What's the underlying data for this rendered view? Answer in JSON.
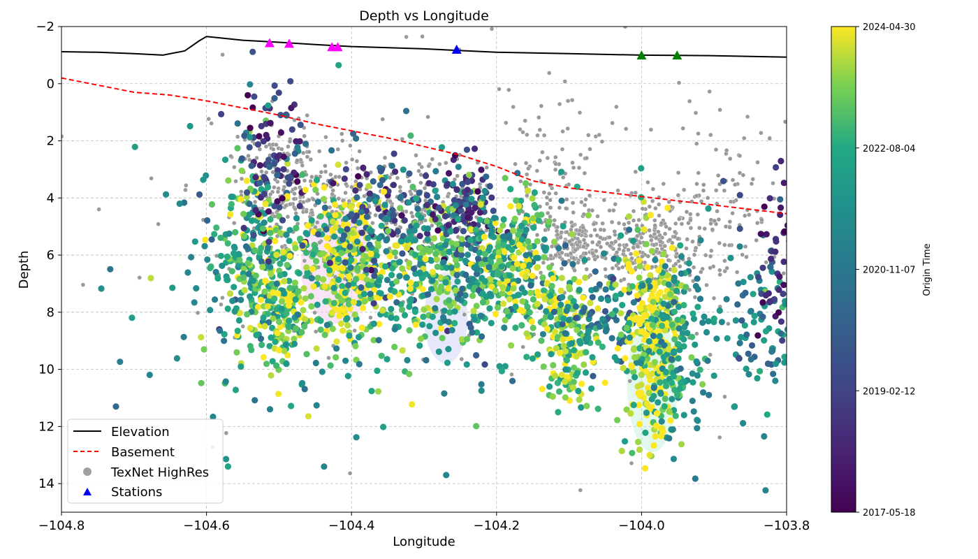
{
  "chart_data": {
    "type": "scatter",
    "title": "Depth vs Longitude",
    "xlabel": "Longitude",
    "ylabel": "Depth",
    "xlim": [
      -104.8,
      -103.8
    ],
    "ylim": [
      15,
      -2
    ],
    "y_inverted": true,
    "xticks": [
      "−104.8",
      "−104.6",
      "−104.4",
      "−104.2",
      "−104.0",
      "−103.8"
    ],
    "xtick_values": [
      -104.8,
      -104.6,
      -104.4,
      -104.2,
      -104.0,
      -103.8
    ],
    "yticks": [
      "−2",
      "0",
      "2",
      "4",
      "6",
      "8",
      "10",
      "12",
      "14"
    ],
    "ytick_values": [
      -2,
      0,
      2,
      4,
      6,
      8,
      10,
      12,
      14
    ],
    "grid": true,
    "legend_position": "lower-left",
    "legend": [
      "Elevation",
      "Basement",
      "TexNet HighRes",
      "Stations"
    ],
    "colorbar": {
      "label": "Origin Time",
      "colormap": "viridis",
      "ticks": [
        "2024-04-30",
        "2022-08-04",
        "2020-11-07",
        "2019-02-12",
        "2017-05-18"
      ],
      "tick_fractions": [
        1.0,
        0.75,
        0.5,
        0.25,
        0.0
      ]
    },
    "elevation": {
      "name": "Elevation",
      "color": "#000000",
      "x": [
        -104.8,
        -104.75,
        -104.7,
        -104.66,
        -104.63,
        -104.61,
        -104.6,
        -104.58,
        -104.55,
        -104.5,
        -104.45,
        -104.4,
        -104.3,
        -104.2,
        -104.1,
        -104.0,
        -103.9,
        -103.8
      ],
      "y": [
        -1.12,
        -1.1,
        -1.05,
        -1.0,
        -1.15,
        -1.5,
        -1.65,
        -1.6,
        -1.52,
        -1.45,
        -1.37,
        -1.3,
        -1.22,
        -1.1,
        -1.05,
        -1.0,
        -0.98,
        -0.93
      ]
    },
    "basement": {
      "name": "Basement",
      "color": "#ff0000",
      "x": [
        -104.8,
        -104.75,
        -104.7,
        -104.65,
        -104.6,
        -104.55,
        -104.5,
        -104.45,
        -104.4,
        -104.35,
        -104.3,
        -104.25,
        -104.2,
        -104.15,
        -104.1,
        -104.05,
        -104.0,
        -103.95,
        -103.9,
        -103.85,
        -103.8
      ],
      "y": [
        -0.2,
        0.05,
        0.3,
        0.4,
        0.6,
        0.85,
        1.1,
        1.4,
        1.65,
        1.9,
        2.2,
        2.5,
        2.9,
        3.4,
        3.65,
        3.8,
        3.95,
        4.1,
        4.25,
        4.4,
        4.55
      ]
    },
    "stations": {
      "name": "Stations",
      "points": [
        {
          "x": -104.513,
          "y": -1.4,
          "color": "#ff00ff"
        },
        {
          "x": -104.486,
          "y": -1.38,
          "color": "#ff00ff"
        },
        {
          "x": -104.427,
          "y": -1.26,
          "color": "#ff00ff"
        },
        {
          "x": -104.419,
          "y": -1.26,
          "color": "#ff00ff"
        },
        {
          "x": -104.255,
          "y": -1.17,
          "color": "#0000ff"
        },
        {
          "x": -104.0,
          "y": -0.97,
          "color": "#008000"
        },
        {
          "x": -103.951,
          "y": -0.97,
          "color": "#008000"
        }
      ]
    },
    "texnet_highres": {
      "name": "TexNet HighRes",
      "color": "#999999",
      "clusters": [
        {
          "x": -104.5,
          "y": 3.5,
          "sx": 0.03,
          "sy": 1.1,
          "n": 180
        },
        {
          "x": -104.42,
          "y": 4.5,
          "sx": 0.04,
          "sy": 1.0,
          "n": 150
        },
        {
          "x": -104.3,
          "y": 4.3,
          "sx": 0.05,
          "sy": 1.0,
          "n": 160
        },
        {
          "x": -104.13,
          "y": 3.5,
          "sx": 0.04,
          "sy": 1.6,
          "n": 120
        },
        {
          "x": -104.09,
          "y": 5.6,
          "sx": 0.025,
          "sy": 0.5,
          "n": 160
        },
        {
          "x": -103.99,
          "y": 5.6,
          "sx": 0.04,
          "sy": 0.8,
          "n": 240
        },
        {
          "x": -103.88,
          "y": 4.2,
          "sx": 0.05,
          "sy": 1.5,
          "n": 120
        },
        {
          "x": -104.3,
          "y": 5.5,
          "sx": 0.25,
          "sy": 3.0,
          "n": 180
        }
      ]
    },
    "catalog_clusters": [
      {
        "x": -104.53,
        "y": 6.0,
        "sx": 0.03,
        "sy": 1.8,
        "t": 0.78,
        "n": 260
      },
      {
        "x": -104.49,
        "y": 8.0,
        "sx": 0.02,
        "sy": 1.2,
        "t": 0.85,
        "n": 140
      },
      {
        "x": -104.51,
        "y": 2.8,
        "sx": 0.025,
        "sy": 1.3,
        "t": 0.2,
        "n": 90
      },
      {
        "x": -104.41,
        "y": 6.3,
        "sx": 0.025,
        "sy": 1.5,
        "t": 0.92,
        "n": 300
      },
      {
        "x": -104.35,
        "y": 4.6,
        "sx": 0.04,
        "sy": 1.2,
        "t": 0.3,
        "n": 120
      },
      {
        "x": -104.3,
        "y": 6.6,
        "sx": 0.04,
        "sy": 1.4,
        "t": 0.82,
        "n": 260
      },
      {
        "x": -104.24,
        "y": 4.4,
        "sx": 0.02,
        "sy": 0.9,
        "t": 0.22,
        "n": 110
      },
      {
        "x": -104.2,
        "y": 6.5,
        "sx": 0.04,
        "sy": 1.3,
        "t": 0.7,
        "n": 200
      },
      {
        "x": -104.17,
        "y": 6.2,
        "sx": 0.02,
        "sy": 1.2,
        "t": 0.9,
        "n": 130
      },
      {
        "x": -104.1,
        "y": 8.8,
        "sx": 0.02,
        "sy": 1.2,
        "t": 0.88,
        "n": 190
      },
      {
        "x": -104.05,
        "y": 8.0,
        "sx": 0.03,
        "sy": 0.8,
        "t": 0.5,
        "n": 90
      },
      {
        "x": -103.985,
        "y": 9.0,
        "sx": 0.02,
        "sy": 1.8,
        "t": 0.95,
        "n": 330
      },
      {
        "x": -103.95,
        "y": 9.2,
        "sx": 0.02,
        "sy": 1.4,
        "t": 0.65,
        "n": 130
      },
      {
        "x": -103.84,
        "y": 8.5,
        "sx": 0.03,
        "sy": 1.6,
        "t": 0.55,
        "n": 90
      },
      {
        "x": -103.81,
        "y": 6.0,
        "sx": 0.015,
        "sy": 1.5,
        "t": 0.2,
        "n": 50
      },
      {
        "x": -104.35,
        "y": 7.0,
        "sx": 0.2,
        "sy": 2.6,
        "t": 0.6,
        "n": 220
      }
    ]
  }
}
